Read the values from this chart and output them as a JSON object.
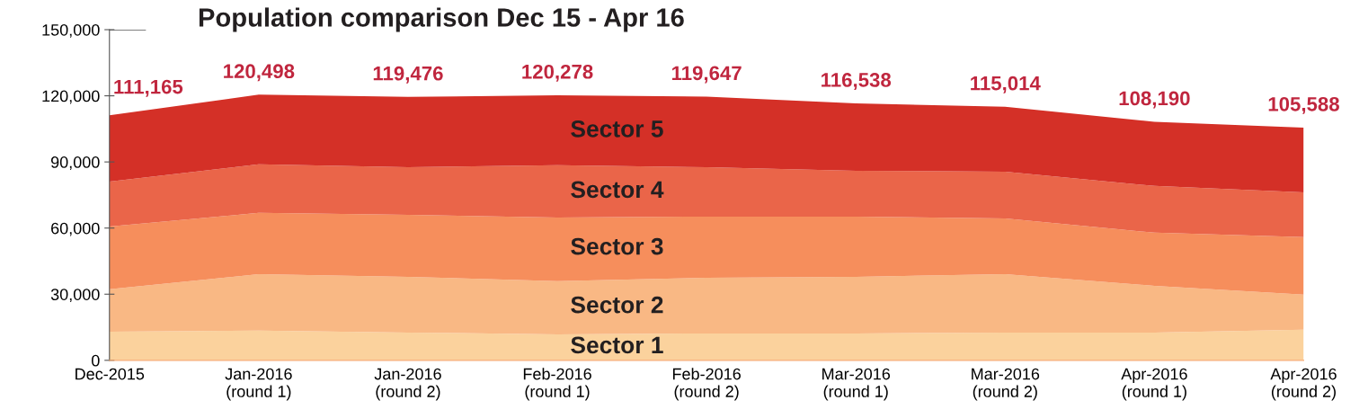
{
  "chart_data": {
    "type": "area",
    "stacked": true,
    "title": "Population comparison Dec 15 - Apr 16",
    "categories": [
      "Dec-2015",
      "Jan-2016\n(round 1)",
      "Jan-2016\n(round 2)",
      "Feb-2016\n(round 1)",
      "Feb-2016\n(round 2)",
      "Mar-2016\n(round 1)",
      "Mar-2016\n(round 2)",
      "Apr-2016\n(round 1)",
      "Apr-2016\n(round 2)"
    ],
    "series": [
      {
        "name": "Sector 1",
        "color": "#fbd29d",
        "values": [
          13000,
          13500,
          12600,
          11800,
          12200,
          12200,
          12600,
          12600,
          13900
        ]
      },
      {
        "name": "Sector 2",
        "color": "#f9b884",
        "values": [
          19200,
          25600,
          25300,
          24100,
          25300,
          25700,
          26500,
          21200,
          15900
        ]
      },
      {
        "name": "Sector 3",
        "color": "#f68e5c",
        "values": [
          28500,
          27800,
          28100,
          28900,
          27700,
          27300,
          25300,
          24100,
          26100
        ]
      },
      {
        "name": "Sector 4",
        "color": "#ea6549",
        "values": [
          20400,
          22000,
          21600,
          23700,
          22400,
          20800,
          21200,
          21200,
          20300
        ]
      },
      {
        "name": "Sector 5",
        "color": "#d43027",
        "values": [
          30065,
          31598,
          31876,
          31778,
          32047,
          30538,
          29414,
          29090,
          29388
        ]
      }
    ],
    "totals": [
      "111,165",
      "120,498",
      "119,476",
      "120,278",
      "119,647",
      "116,538",
      "115,014",
      "108,190",
      "105,588"
    ],
    "ylim": [
      0,
      150000
    ],
    "yticks": [
      {
        "value": 0,
        "label": "0"
      },
      {
        "value": 30000,
        "label": "30,000"
      },
      {
        "value": 60000,
        "label": "60,000"
      },
      {
        "value": 90000,
        "label": "90,000"
      },
      {
        "value": 120000,
        "label": "120,000"
      },
      {
        "value": 150000,
        "label": "150,000"
      }
    ],
    "grid": false,
    "legend": false
  }
}
